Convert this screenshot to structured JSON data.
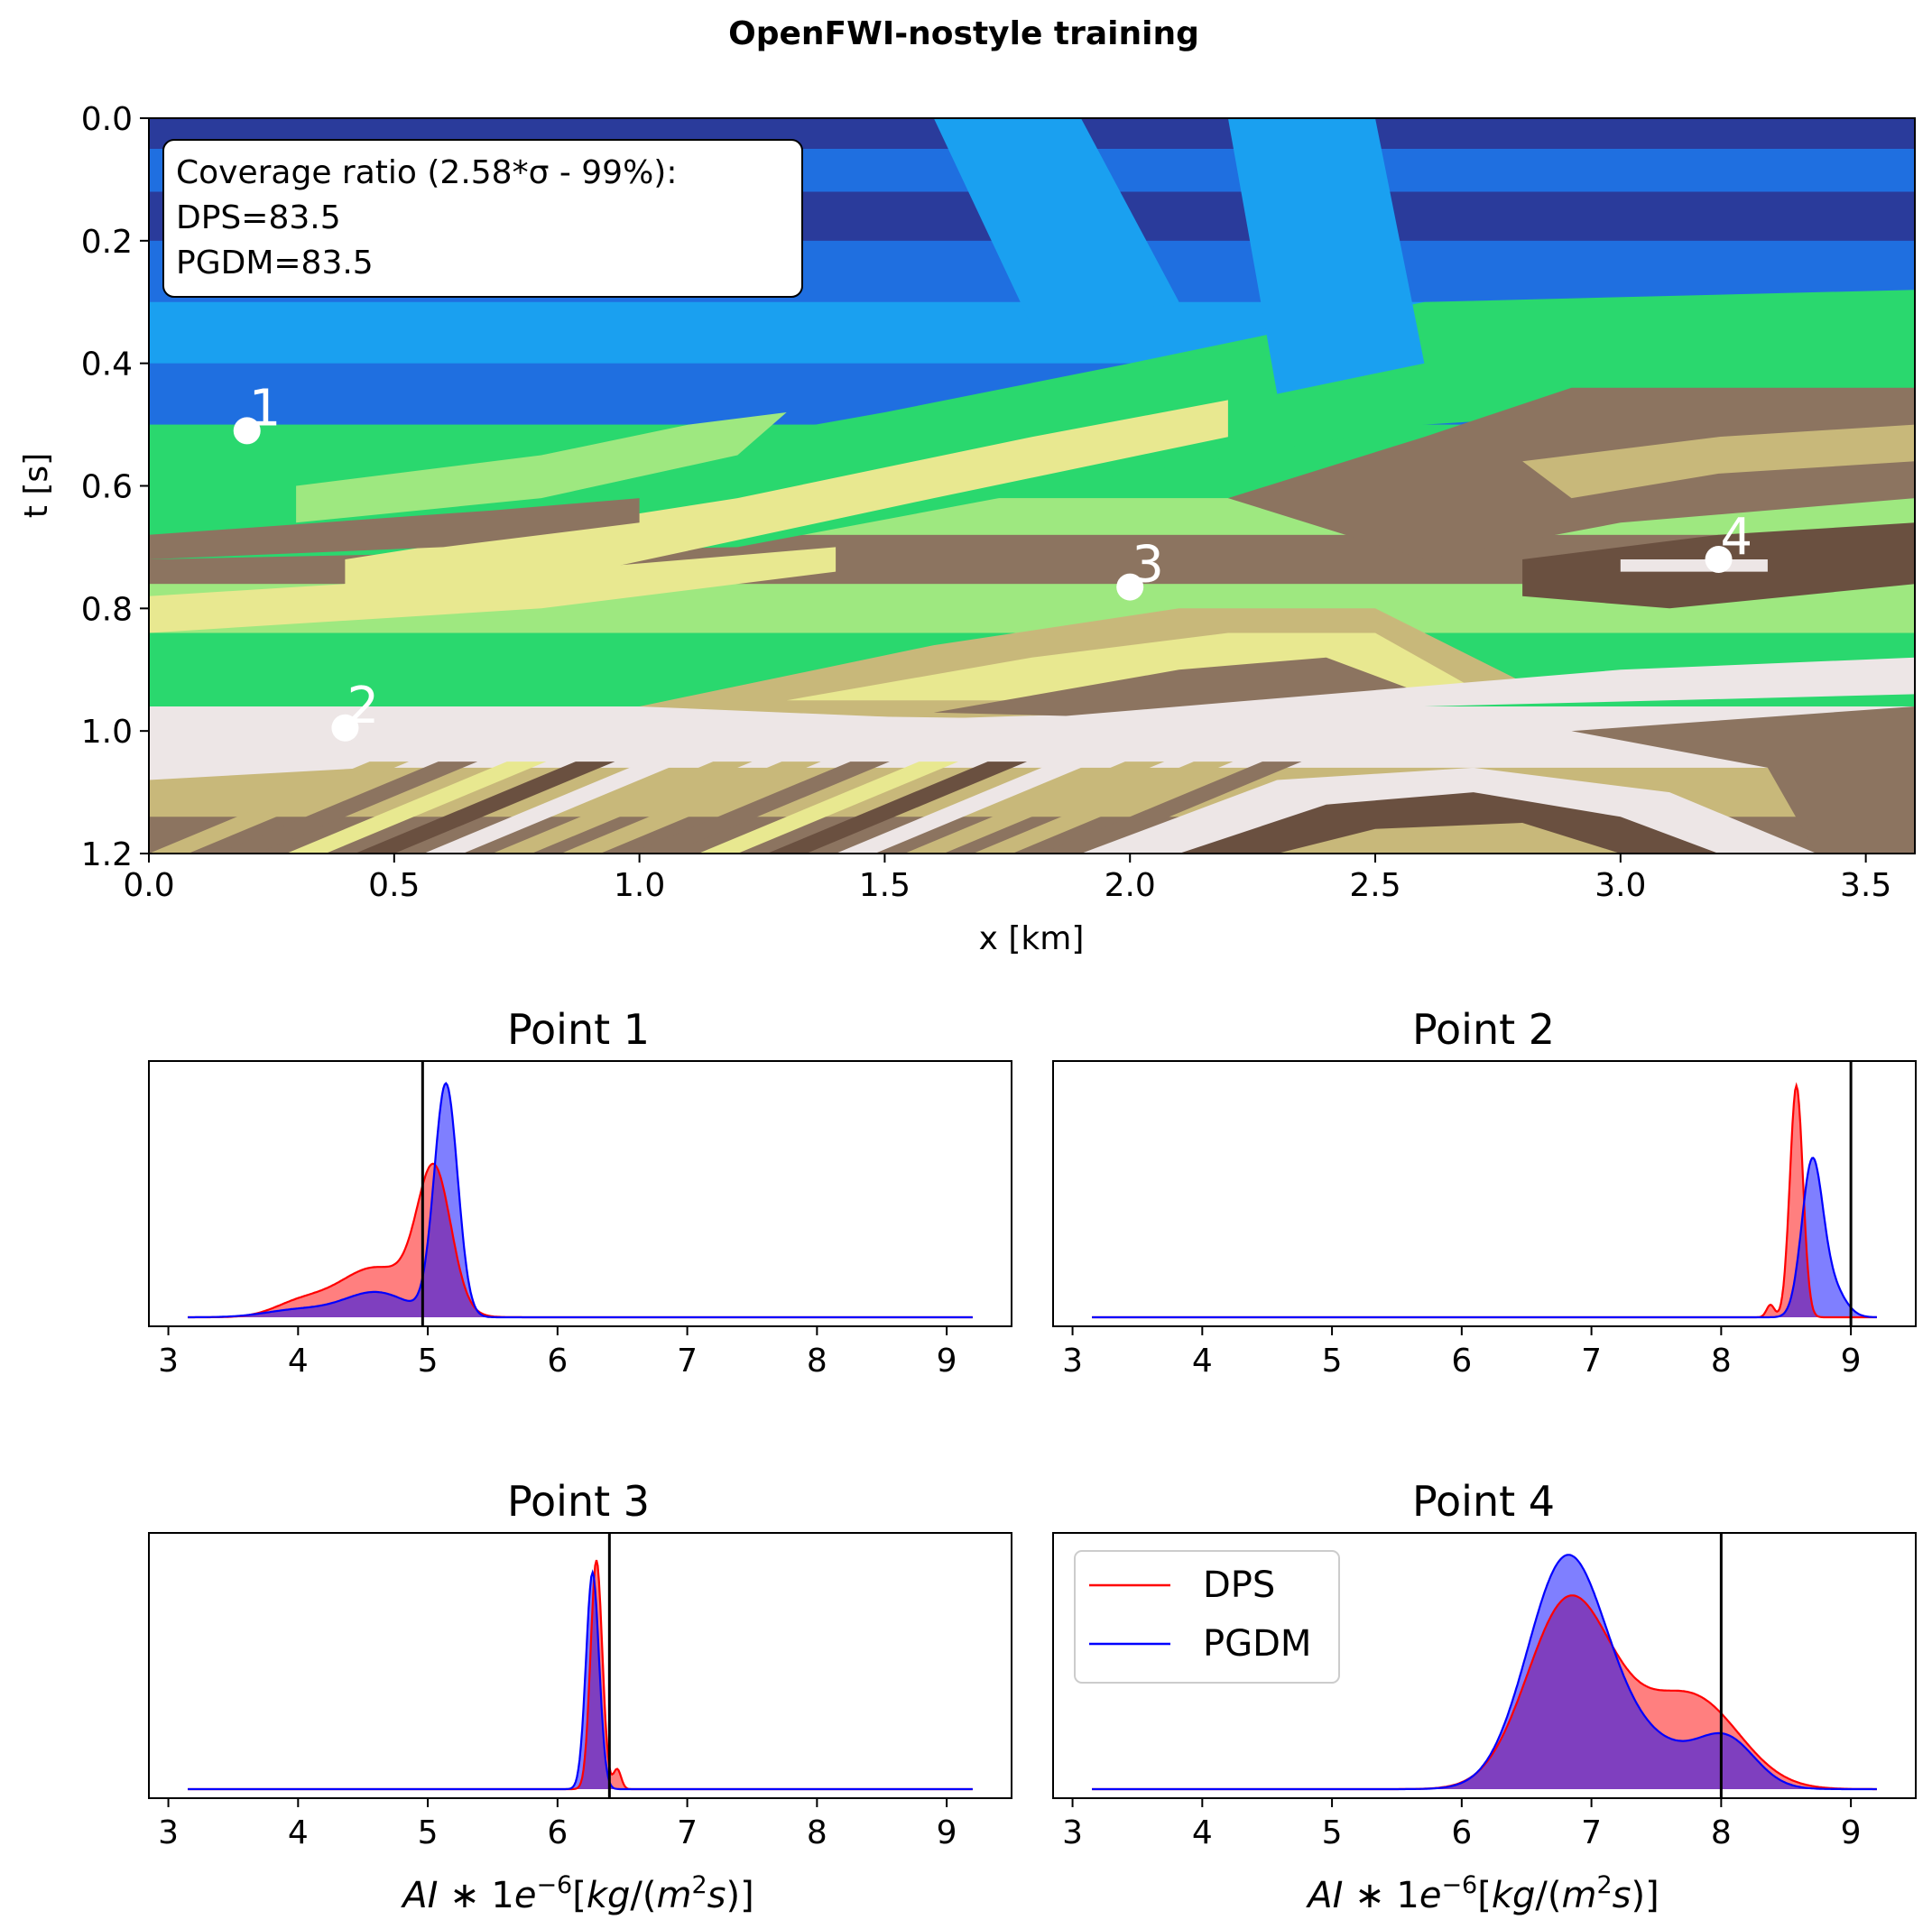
{
  "figure_title": "OpenFWI-nostyle training",
  "colors": {
    "dps": "#ff0000",
    "pgdm": "#0000ff",
    "overlap": "#7b3cbc",
    "true_line": "#000000",
    "deep_blue": "#2a3b9b",
    "mid_blue": "#1f6fe0",
    "light_blue": "#1aa0f0",
    "green": "#2ad86e",
    "light_green": "#9ee880",
    "pale_yellow": "#e8e890",
    "tan": "#c8b87a",
    "brown": "#8c7460",
    "dark_brown": "#6a5040",
    "light_gray": "#ede6e6"
  },
  "chart_data": [
    {
      "type": "heatmap",
      "name": "acoustic-impedance-section",
      "title": "",
      "xlabel": "x [km]",
      "ylabel": "t [s]",
      "xlim": [
        0.0,
        3.6
      ],
      "ylim": [
        1.2,
        0.0
      ],
      "xticks": [
        "0.0",
        "0.5",
        "1.0",
        "1.5",
        "2.0",
        "2.5",
        "3.0",
        "3.5"
      ],
      "xtick_values": [
        0.0,
        0.5,
        1.0,
        1.5,
        2.0,
        2.5,
        3.0,
        3.5
      ],
      "yticks": [
        "0.0",
        "0.2",
        "0.4",
        "0.6",
        "0.8",
        "1.0",
        "1.2"
      ],
      "ytick_values": [
        0.0,
        0.2,
        0.4,
        0.6,
        0.8,
        1.0,
        1.2
      ],
      "annotation_box": {
        "line1": "Coverage ratio (2.58*σ - 99%):",
        "line2": "DPS=83.5",
        "line3": "PGDM=83.5"
      },
      "points": [
        {
          "label": "1",
          "x": 0.2,
          "t": 0.51
        },
        {
          "label": "2",
          "x": 0.4,
          "t": 0.995
        },
        {
          "label": "3",
          "x": 2.0,
          "t": 0.765
        },
        {
          "label": "4",
          "x": 3.2,
          "t": 0.72
        }
      ]
    },
    {
      "type": "area",
      "title": "Point 1",
      "xlabel": "",
      "xlim": [
        2.85,
        9.5
      ],
      "xticks": [
        "3",
        "4",
        "5",
        "6",
        "7",
        "8",
        "9"
      ],
      "xtick_values": [
        3,
        4,
        5,
        6,
        7,
        8,
        9
      ],
      "true_value": 4.96,
      "ymax": 1.0,
      "series": [
        {
          "name": "DPS",
          "peaks": [
            {
              "mu": 5.05,
              "sigma": 0.13,
              "amp": 0.55
            },
            {
              "mu": 4.6,
              "sigma": 0.3,
              "amp": 0.2
            },
            {
              "mu": 4.0,
              "sigma": 0.2,
              "amp": 0.05
            }
          ]
        },
        {
          "name": "PGDM",
          "peaks": [
            {
              "mu": 5.14,
              "sigma": 0.09,
              "amp": 0.93
            },
            {
              "mu": 4.6,
              "sigma": 0.25,
              "amp": 0.1
            },
            {
              "mu": 4.0,
              "sigma": 0.25,
              "amp": 0.03
            }
          ]
        }
      ]
    },
    {
      "type": "area",
      "title": "Point 2",
      "xlabel": "",
      "xlim": [
        2.85,
        9.5
      ],
      "xticks": [
        "3",
        "4",
        "5",
        "6",
        "7",
        "8",
        "9"
      ],
      "xtick_values": [
        3,
        4,
        5,
        6,
        7,
        8,
        9
      ],
      "true_value": 9.0,
      "ymax": 1.0,
      "series": [
        {
          "name": "DPS",
          "peaks": [
            {
              "mu": 8.58,
              "sigma": 0.05,
              "amp": 0.93
            },
            {
              "mu": 8.38,
              "sigma": 0.03,
              "amp": 0.05
            }
          ]
        },
        {
          "name": "PGDM",
          "peaks": [
            {
              "mu": 8.7,
              "sigma": 0.08,
              "amp": 0.6
            },
            {
              "mu": 8.85,
              "sigma": 0.1,
              "amp": 0.12
            }
          ]
        }
      ]
    },
    {
      "type": "area",
      "title": "Point 3",
      "xlabel": "AI * 1e−6 [kg/(m² s)]",
      "xlim": [
        2.85,
        9.5
      ],
      "xticks": [
        "3",
        "4",
        "5",
        "6",
        "7",
        "8",
        "9"
      ],
      "xtick_values": [
        3,
        4,
        5,
        6,
        7,
        8,
        9
      ],
      "true_value": 6.4,
      "ymax": 1.0,
      "series": [
        {
          "name": "DPS",
          "peaks": [
            {
              "mu": 6.3,
              "sigma": 0.045,
              "amp": 0.92
            },
            {
              "mu": 6.46,
              "sigma": 0.03,
              "amp": 0.08
            }
          ]
        },
        {
          "name": "PGDM",
          "peaks": [
            {
              "mu": 6.27,
              "sigma": 0.05,
              "amp": 0.87
            }
          ]
        }
      ]
    },
    {
      "type": "area",
      "title": "Point 4",
      "xlabel": "AI * 1e−6 [kg/(m² s)]",
      "xlim": [
        2.85,
        9.5
      ],
      "xticks": [
        "3",
        "4",
        "5",
        "6",
        "7",
        "8",
        "9"
      ],
      "xtick_values": [
        3,
        4,
        5,
        6,
        7,
        8,
        9
      ],
      "true_value": 8.0,
      "ymax": 1.0,
      "legend": {
        "placement": "upper-left",
        "entries": [
          "DPS",
          "PGDM"
        ]
      },
      "series": [
        {
          "name": "DPS",
          "peaks": [
            {
              "mu": 6.82,
              "sigma": 0.32,
              "amp": 0.74
            },
            {
              "mu": 7.8,
              "sigma": 0.35,
              "amp": 0.35
            },
            {
              "mu": 7.3,
              "sigma": 0.3,
              "amp": 0.1
            }
          ]
        },
        {
          "name": "PGDM",
          "peaks": [
            {
              "mu": 6.8,
              "sigma": 0.3,
              "amp": 0.88
            },
            {
              "mu": 7.4,
              "sigma": 0.4,
              "amp": 0.18
            },
            {
              "mu": 8.05,
              "sigma": 0.22,
              "amp": 0.17
            }
          ]
        }
      ]
    }
  ]
}
